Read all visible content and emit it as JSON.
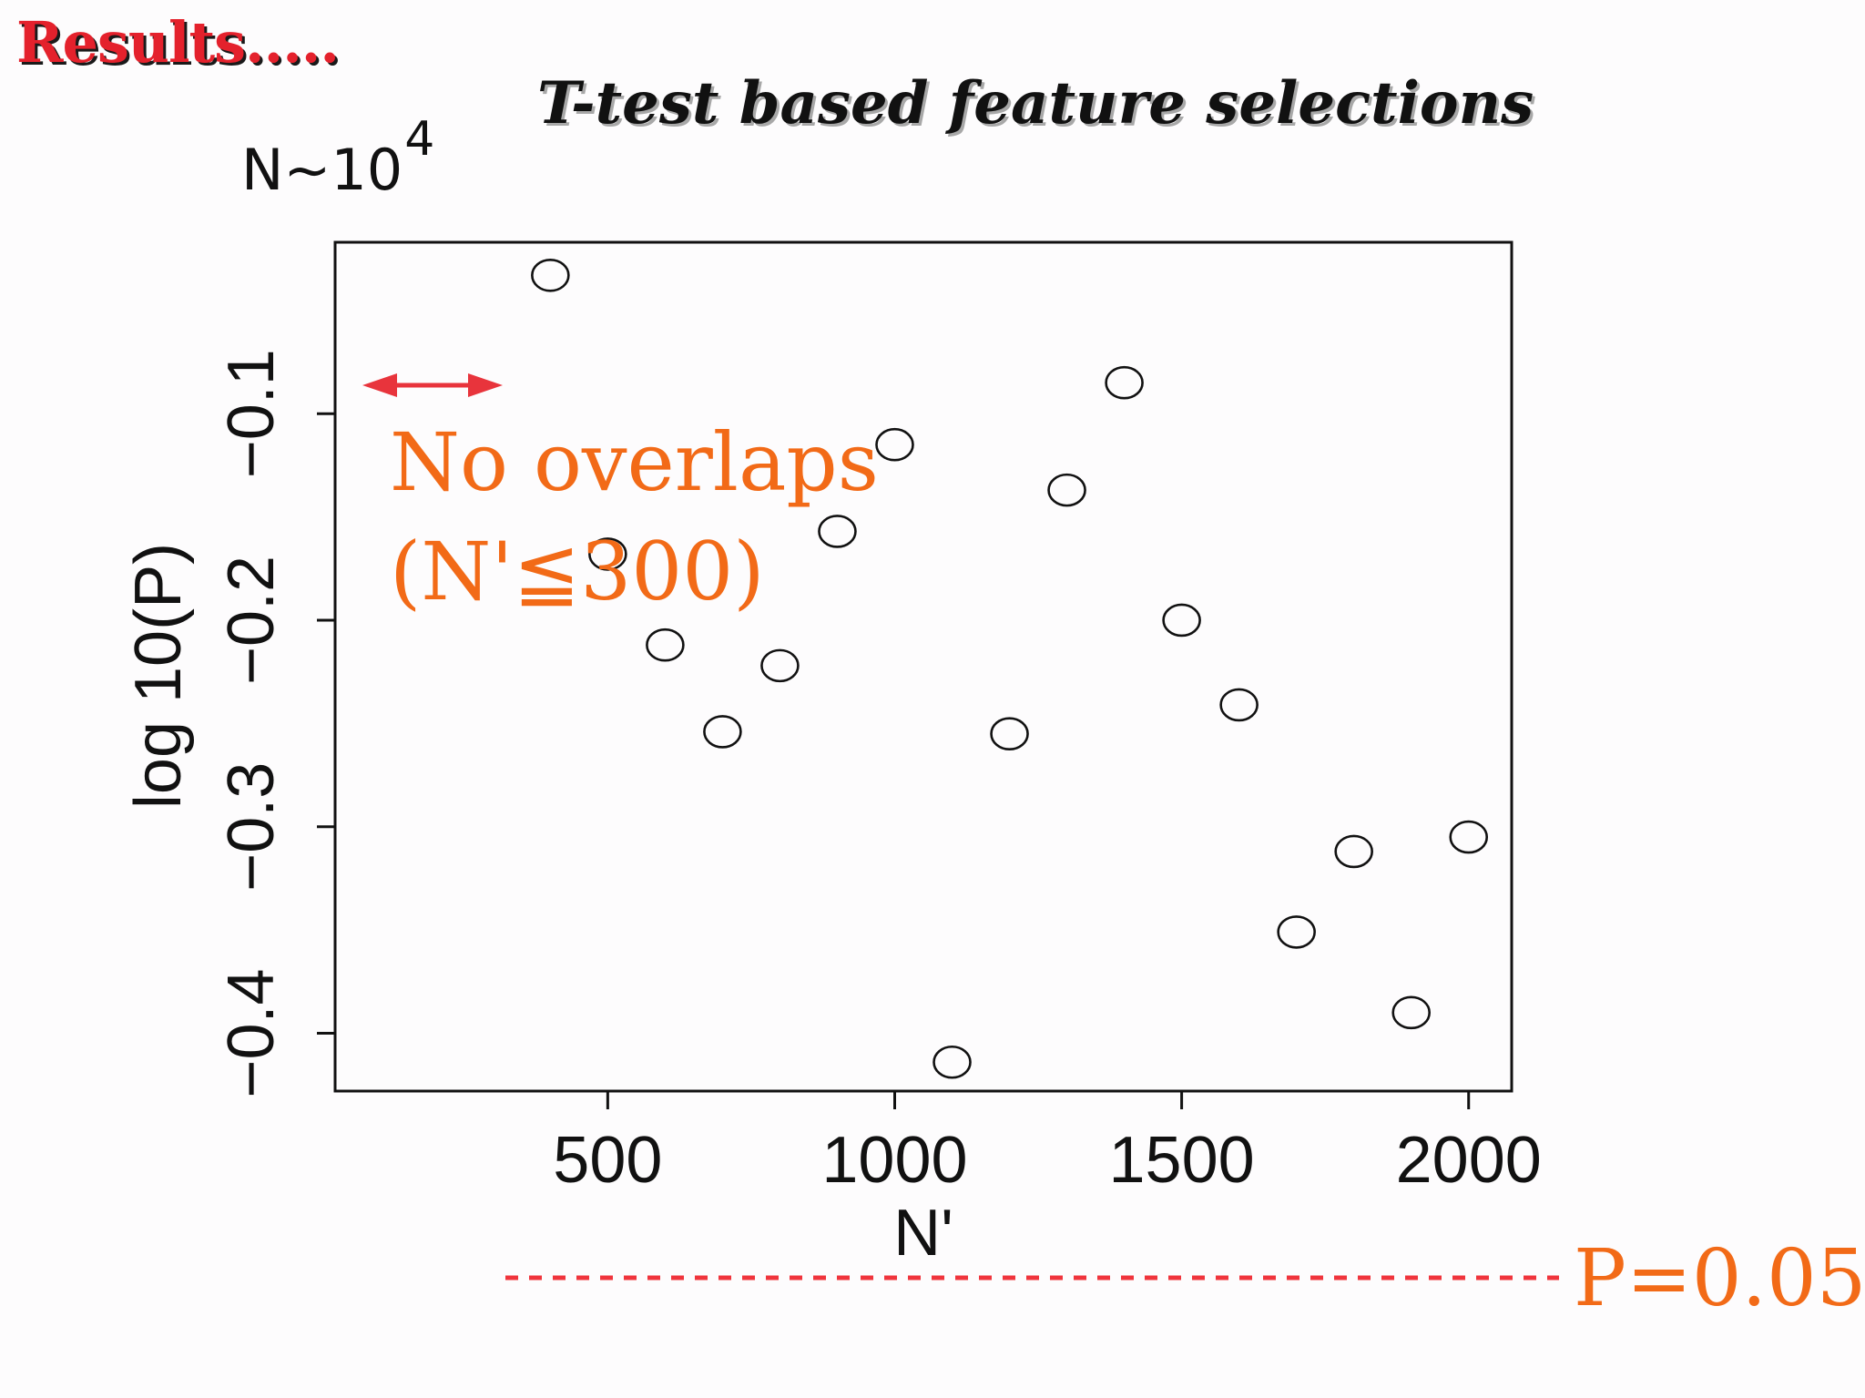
{
  "slide": {
    "heading": "Results.....",
    "title": "T-test based feature selections",
    "n_note_base": "N∼10",
    "n_note_exp": "4"
  },
  "colors": {
    "heading_red": "#e4212c",
    "annotation_orange": "#f26a17",
    "arrow_red": "#e8343c",
    "reference_line": "#f0343c"
  },
  "chart_data": {
    "type": "scatter",
    "title": "",
    "xlabel": "N'",
    "ylabel": "log 10(P)",
    "xlim": [
      25,
      2075
    ],
    "ylim": [
      -0.428,
      -0.017
    ],
    "xticks": [
      500,
      1000,
      1500,
      2000
    ],
    "yticks": [
      -0.1,
      -0.2,
      -0.3,
      -0.4
    ],
    "xtick_labels": [
      "500",
      "1000",
      "1500",
      "2000"
    ],
    "ytick_labels": [
      "−0.1",
      "−0.2",
      "−0.3",
      "−0.4"
    ],
    "marker": "open-circle",
    "grid": false,
    "legend": "none",
    "points": [
      {
        "x": 400,
        "y": -0.033
      },
      {
        "x": 500,
        "y": -0.168
      },
      {
        "x": 600,
        "y": -0.212
      },
      {
        "x": 700,
        "y": -0.254
      },
      {
        "x": 800,
        "y": -0.222
      },
      {
        "x": 900,
        "y": -0.157
      },
      {
        "x": 1000,
        "y": -0.115
      },
      {
        "x": 1100,
        "y": -0.414
      },
      {
        "x": 1200,
        "y": -0.255
      },
      {
        "x": 1300,
        "y": -0.137
      },
      {
        "x": 1400,
        "y": -0.085
      },
      {
        "x": 1500,
        "y": -0.2
      },
      {
        "x": 1600,
        "y": -0.241
      },
      {
        "x": 1700,
        "y": -0.351
      },
      {
        "x": 1800,
        "y": -0.312
      },
      {
        "x": 1900,
        "y": -0.39
      },
      {
        "x": 2000,
        "y": -0.305
      }
    ],
    "annotations": {
      "no_overlap_line1": "No overlaps",
      "no_overlap_line2": "(N'≦300)",
      "no_overlap_range_x": [
        25,
        300
      ],
      "reference_label": "P=0.05",
      "reference_style": "dashed"
    }
  }
}
